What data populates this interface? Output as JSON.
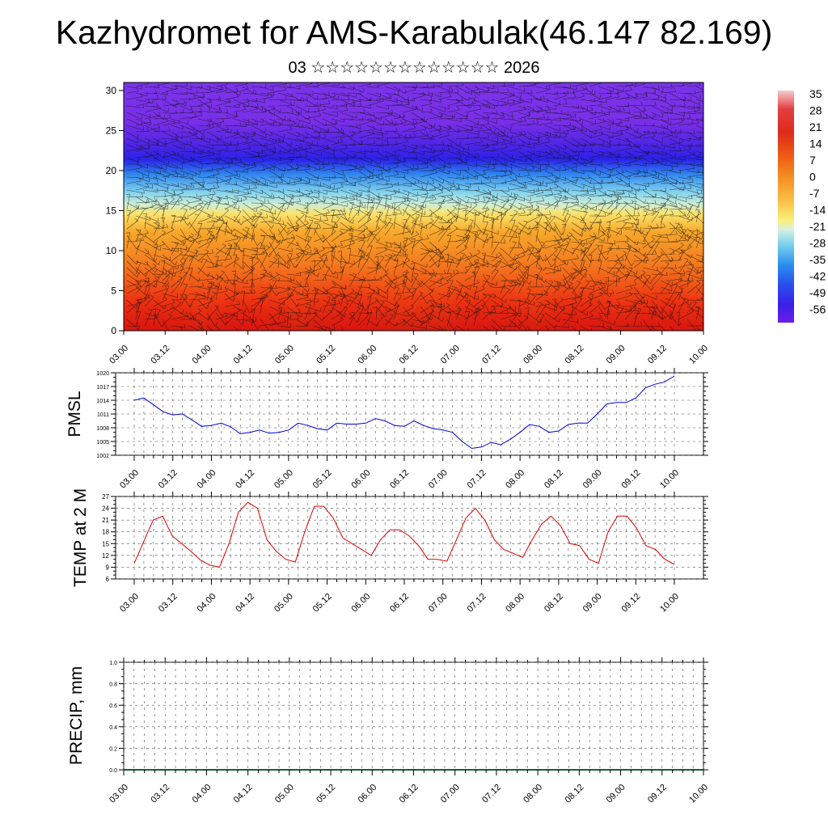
{
  "header": {
    "title": "Kazhydromet for AMS-Karabulak(46.147 82.169)",
    "subtitle": "03 ☆☆☆☆☆☆☆☆☆☆☆☆☆ 2026"
  },
  "colors": {
    "pmsl_line": "#0000dd",
    "temp_line": "#dd0000",
    "precip_line": "#1a5c3a",
    "wind_barb": "#111111"
  },
  "chart_data": [
    {
      "type": "heatmap",
      "title": "Vertical temperature cross-section with wind barbs",
      "x_tick_labels": [
        "03.00",
        "03.12",
        "04.00",
        "04.12",
        "05.00",
        "05.12",
        "06.00",
        "06.12",
        "07.00",
        "07.12",
        "08.00",
        "08.12",
        "09.00",
        "09.12",
        "10.00"
      ],
      "y_ticks": [
        0,
        5,
        10,
        15,
        20,
        25,
        30
      ],
      "ylim": [
        0,
        31
      ],
      "colorbar_labels": [
        "35",
        "28",
        "21",
        "14",
        "7",
        "0",
        "-7",
        "-14",
        "-21",
        "-28",
        "-35",
        "-42",
        "-49",
        "-56"
      ],
      "colorbar_range": [
        -63,
        42
      ]
    },
    {
      "type": "line",
      "ylabel": "PMSL",
      "y_ticks": [
        1002,
        1005,
        1008,
        1011,
        1014,
        1017,
        1020
      ],
      "ylim": [
        1002,
        1020
      ],
      "x_tick_labels": [
        "03.00",
        "03.12",
        "04.00",
        "04.12",
        "05.00",
        "05.12",
        "06.00",
        "06.12",
        "07.00",
        "07.12",
        "08.00",
        "08.12",
        "09.00",
        "09.12",
        "10.00"
      ],
      "values": [
        1014,
        1014.5,
        1013,
        1011.5,
        1010.8,
        1011,
        1009.7,
        1008.3,
        1008.5,
        1009,
        1008.2,
        1006.7,
        1007,
        1007.5,
        1006.8,
        1007,
        1007.5,
        1009,
        1008.5,
        1007.8,
        1007.5,
        1009,
        1008.8,
        1008.8,
        1009,
        1010,
        1009.5,
        1008.5,
        1008.3,
        1009.5,
        1008.5,
        1007.8,
        1007.5,
        1007,
        1005,
        1003.5,
        1003.8,
        1004.8,
        1004.3,
        1005.5,
        1007,
        1008.7,
        1008.3,
        1007,
        1007.3,
        1008.7,
        1009,
        1009,
        1011,
        1013.2,
        1013.5,
        1013.5,
        1014.5,
        1016.7,
        1017.5,
        1018,
        1019.3
      ]
    },
    {
      "type": "line",
      "ylabel": "TEMP at 2 M",
      "y_ticks": [
        6,
        9,
        12,
        15,
        18,
        21,
        24,
        27
      ],
      "ylim": [
        6,
        27
      ],
      "x_tick_labels": [
        "03.00",
        "03.12",
        "04.00",
        "04.12",
        "05.00",
        "05.12",
        "06.00",
        "06.12",
        "07.00",
        "07.12",
        "08.00",
        "08.12",
        "09.00",
        "09.12",
        "10.00"
      ],
      "values": [
        10,
        15.5,
        21,
        22,
        17,
        15,
        13,
        10.8,
        9.5,
        9,
        15,
        23,
        25.5,
        24,
        16,
        13,
        11,
        10.3,
        18,
        24.5,
        24.5,
        21.5,
        16.5,
        15,
        13.5,
        12,
        16,
        18.5,
        18.5,
        17,
        14.5,
        11,
        11,
        10.5,
        16,
        21.5,
        24,
        21,
        16,
        13.5,
        12.5,
        11.5,
        16,
        20,
        22,
        19.5,
        15,
        14.5,
        11,
        10,
        18,
        22,
        22,
        19,
        14.5,
        13.5,
        11,
        9.7
      ]
    },
    {
      "type": "line",
      "ylabel": "PRECIP, mm",
      "y_ticks": [
        "0.0",
        "0.2",
        "0.4",
        "0.6",
        "0.8",
        "1.0"
      ],
      "ylim": [
        0,
        1
      ],
      "x_tick_labels": [
        "03.00",
        "03.12",
        "04.00",
        "04.12",
        "05.00",
        "05.12",
        "06.00",
        "06.12",
        "07.00",
        "07.12",
        "08.00",
        "08.12",
        "09.00",
        "09.12",
        "10.00"
      ],
      "values": [
        0,
        0,
        0,
        0,
        0,
        0,
        0,
        0,
        0,
        0,
        0,
        0,
        0,
        0,
        0,
        0,
        0,
        0,
        0,
        0,
        0,
        0,
        0,
        0,
        0,
        0,
        0,
        0,
        0,
        0,
        0,
        0,
        0,
        0,
        0,
        0,
        0,
        0,
        0,
        0,
        0,
        0,
        0,
        0,
        0,
        0,
        0,
        0,
        0,
        0,
        0,
        0,
        0,
        0,
        0,
        0,
        0,
        0
      ]
    }
  ]
}
